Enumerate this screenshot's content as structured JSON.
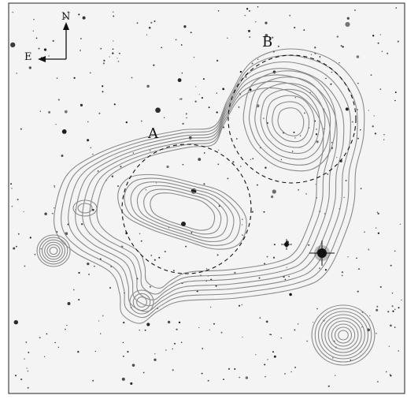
{
  "figure": {
    "regions": [
      {
        "label": "A"
      },
      {
        "label": "B"
      }
    ],
    "compass": {
      "north": "N",
      "east": "E"
    },
    "colors": {
      "background": "#f4f4f4",
      "contour": "#8a8a8a",
      "circle": "#111111",
      "star": "#111111"
    }
  }
}
